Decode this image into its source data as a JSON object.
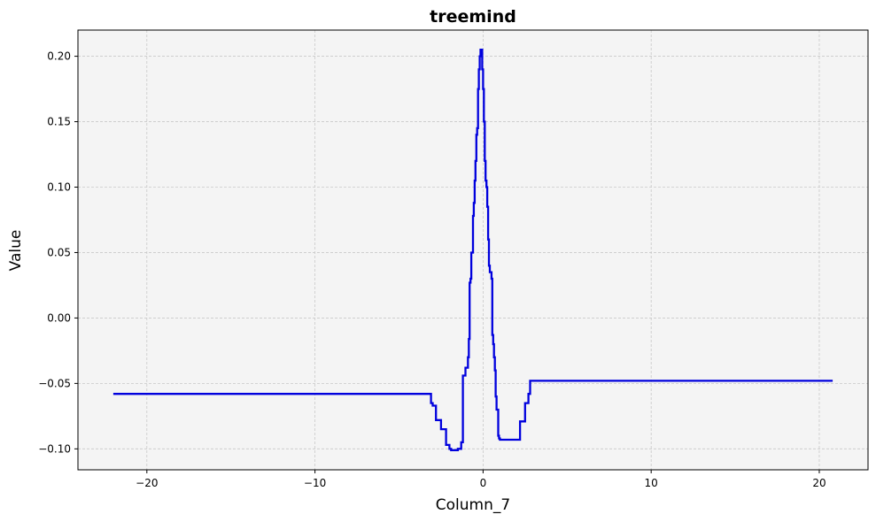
{
  "chart_data": {
    "type": "line",
    "title": "treemind",
    "xlabel": "Column_7",
    "ylabel": "Value",
    "xlim": [
      -24.1,
      22.9
    ],
    "ylim": [
      -0.116,
      0.22
    ],
    "x_ticks": [
      -20,
      -10,
      0,
      10,
      20
    ],
    "x_tick_labels": [
      "−20",
      "−10",
      "0",
      "10",
      "20"
    ],
    "y_ticks": [
      -0.1,
      -0.05,
      0.0,
      0.05,
      0.1,
      0.15,
      0.2
    ],
    "y_tick_labels": [
      "−0.10",
      "−0.05",
      "0.00",
      "0.05",
      "0.10",
      "0.15",
      "0.20"
    ],
    "grid": true,
    "plot_background": "#f4f4f4",
    "line_color": "#0000dd",
    "series": [
      {
        "step": "post",
        "x": [
          -22.0,
          -3.1,
          -3.0,
          -2.8,
          -2.5,
          -2.2,
          -2.0,
          -1.9,
          -1.5,
          -1.3,
          -1.2,
          -1.05,
          -0.9,
          -0.85,
          -0.8,
          -0.75,
          -0.7,
          -0.6,
          -0.55,
          -0.5,
          -0.45,
          -0.4,
          -0.35,
          -0.3,
          -0.25,
          -0.2,
          -0.15,
          -0.1,
          -0.05,
          0.0,
          0.05,
          0.1,
          0.15,
          0.2,
          0.25,
          0.3,
          0.35,
          0.4,
          0.5,
          0.55,
          0.6,
          0.65,
          0.7,
          0.75,
          0.8,
          0.9,
          0.95,
          1.0,
          1.1,
          1.2,
          1.5,
          2.2,
          2.5,
          2.7,
          2.8,
          20.8
        ],
        "y": [
          -0.058,
          -0.065,
          -0.067,
          -0.078,
          -0.085,
          -0.097,
          -0.1,
          -0.101,
          -0.1,
          -0.095,
          -0.044,
          -0.038,
          -0.03,
          -0.016,
          0.027,
          0.03,
          0.05,
          0.078,
          0.088,
          0.105,
          0.12,
          0.14,
          0.145,
          0.175,
          0.19,
          0.2,
          0.205,
          0.205,
          0.19,
          0.175,
          0.15,
          0.12,
          0.105,
          0.1,
          0.085,
          0.06,
          0.04,
          0.035,
          0.03,
          -0.013,
          -0.02,
          -0.03,
          -0.04,
          -0.06,
          -0.07,
          -0.09,
          -0.092,
          -0.093,
          -0.093,
          -0.093,
          -0.093,
          -0.079,
          -0.065,
          -0.058,
          -0.048,
          -0.048
        ]
      }
    ]
  }
}
